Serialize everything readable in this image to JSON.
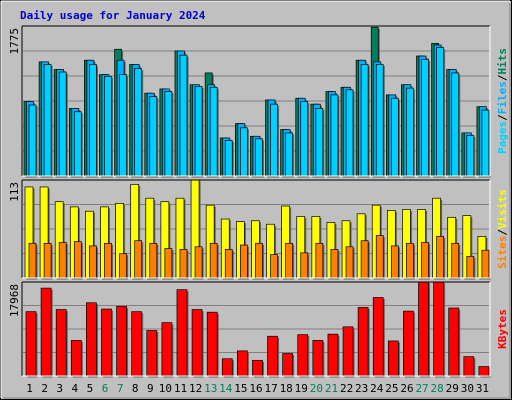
{
  "title": "Daily usage for January 2024",
  "colors": {
    "background": "#c0c0c0",
    "plot_bg": "#c0c0c0",
    "title": "#0000cc",
    "hits": "#00805c",
    "files": "#00b0ff",
    "pages": "#00d0ff",
    "visits": "#ffff00",
    "sites": "#ff8000",
    "kbytes": "#ff0000",
    "weekend_tick": "#00805c",
    "gridline": "#808080"
  },
  "chart_data": [
    {
      "type": "bar",
      "panel": "hits-files-pages",
      "ymax_label": "1775",
      "ylim": [
        0,
        1775
      ],
      "ylabel_parts": [
        "Pages",
        "/",
        "Files",
        "/",
        "Hits"
      ],
      "categories": [
        "1",
        "2",
        "3",
        "4",
        "5",
        "6",
        "7",
        "8",
        "9",
        "10",
        "11",
        "12",
        "13",
        "14",
        "15",
        "16",
        "17",
        "18",
        "19",
        "20",
        "21",
        "22",
        "23",
        "24",
        "25",
        "26",
        "27",
        "28",
        "29",
        "30",
        "31"
      ],
      "series": [
        {
          "name": "Hits",
          "values": [
            880,
            1350,
            1260,
            800,
            1370,
            1200,
            1500,
            1320,
            980,
            1030,
            1480,
            1080,
            1220,
            450,
            620,
            470,
            900,
            550,
            920,
            850,
            1000,
            1050,
            1370,
            1760,
            960,
            1080,
            1420,
            1570,
            1260,
            510,
            820
          ]
        },
        {
          "name": "Files",
          "values": [
            880,
            1350,
            1260,
            800,
            1370,
            1200,
            1370,
            1320,
            980,
            1030,
            1480,
            1080,
            1080,
            450,
            620,
            470,
            900,
            550,
            920,
            850,
            1000,
            1050,
            1370,
            1350,
            960,
            1080,
            1420,
            1550,
            1260,
            510,
            820
          ]
        },
        {
          "name": "Pages",
          "values": [
            840,
            1320,
            1230,
            760,
            1320,
            1180,
            1200,
            1270,
            940,
            1000,
            1430,
            1060,
            1050,
            420,
            570,
            440,
            850,
            510,
            880,
            800,
            960,
            1020,
            1320,
            1320,
            920,
            1040,
            1380,
            1520,
            1220,
            480,
            780
          ]
        }
      ]
    },
    {
      "type": "bar",
      "panel": "visits-sites",
      "ymax_label": "113",
      "ylim": [
        0,
        113
      ],
      "ylabel_parts": [
        "Sites",
        "/",
        "Visits"
      ],
      "categories": [
        "1",
        "2",
        "3",
        "4",
        "5",
        "6",
        "7",
        "8",
        "9",
        "10",
        "11",
        "12",
        "13",
        "14",
        "15",
        "16",
        "17",
        "18",
        "19",
        "20",
        "21",
        "22",
        "23",
        "24",
        "25",
        "26",
        "27",
        "28",
        "29",
        "30",
        "31"
      ],
      "series": [
        {
          "name": "Visits",
          "values": [
            105,
            105,
            88,
            82,
            77,
            82,
            86,
            108,
            92,
            88,
            92,
            113,
            84,
            68,
            65,
            66,
            62,
            83,
            71,
            71,
            64,
            66,
            74,
            84,
            78,
            79,
            79,
            92,
            70,
            72,
            48
          ]
        },
        {
          "name": "Sites",
          "values": [
            40,
            40,
            41,
            42,
            37,
            40,
            28,
            43,
            40,
            34,
            33,
            36,
            40,
            33,
            38,
            40,
            27,
            40,
            29,
            40,
            33,
            36,
            43,
            49,
            37,
            40,
            41,
            48,
            40,
            25,
            32
          ]
        }
      ]
    },
    {
      "type": "bar",
      "panel": "kbytes",
      "ymax_label": "17968",
      "ylim": [
        0,
        17968
      ],
      "ylabel_parts": [
        "KBytes"
      ],
      "categories": [
        "1",
        "2",
        "3",
        "4",
        "5",
        "6",
        "7",
        "8",
        "9",
        "10",
        "11",
        "12",
        "13",
        "14",
        "15",
        "16",
        "17",
        "18",
        "19",
        "20",
        "21",
        "22",
        "23",
        "24",
        "25",
        "26",
        "27",
        "28",
        "29",
        "30",
        "31"
      ],
      "series": [
        {
          "name": "KBytes",
          "values": [
            12300,
            16800,
            12700,
            6800,
            14000,
            12800,
            13300,
            12300,
            8700,
            10200,
            16500,
            12700,
            12200,
            3300,
            4800,
            3000,
            7600,
            4300,
            7900,
            6800,
            8000,
            9400,
            13100,
            15000,
            6700,
            12400,
            18000,
            18000,
            13000,
            3700,
            1800
          ]
        }
      ]
    }
  ],
  "weekend_days": [
    "6",
    "7",
    "13",
    "14",
    "20",
    "21",
    "27",
    "28"
  ]
}
